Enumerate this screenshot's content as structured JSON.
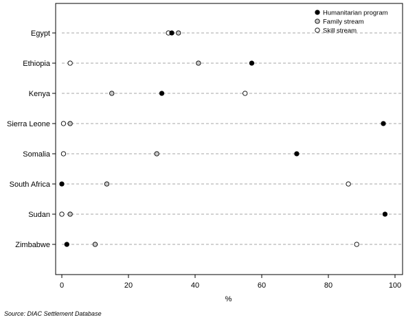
{
  "chart_data": {
    "type": "scatter",
    "categories": [
      "Egypt",
      "Ethiopia",
      "Kenya",
      "Sierra Leone",
      "Somalia",
      "South Africa",
      "Sudan",
      "Zimbabwe"
    ],
    "series": [
      {
        "name": "Humanitarian program",
        "marker": "filled-black",
        "values": [
          33,
          57,
          30,
          96.5,
          70.5,
          0,
          97,
          1.5
        ]
      },
      {
        "name": "Family stream",
        "marker": "filled-grey",
        "values": [
          35,
          41,
          15,
          2.5,
          28.5,
          13.5,
          2.5,
          10
        ]
      },
      {
        "name": "Skill stream",
        "marker": "hollow",
        "values": [
          32,
          2.5,
          55,
          0.5,
          0.5,
          86,
          0,
          88.5
        ]
      }
    ],
    "x_ticks": [
      "0",
      "20",
      "40",
      "60",
      "80",
      "100"
    ],
    "xlim": [
      0,
      100
    ],
    "xlabel": "%",
    "legend_position": "top-right",
    "colors": {
      "humanitarian": "#000000",
      "family": "#c8c8c8",
      "skill": "#ffffff",
      "guide": "#888888"
    }
  },
  "source_note": "Source: DIAC Settlement Database"
}
